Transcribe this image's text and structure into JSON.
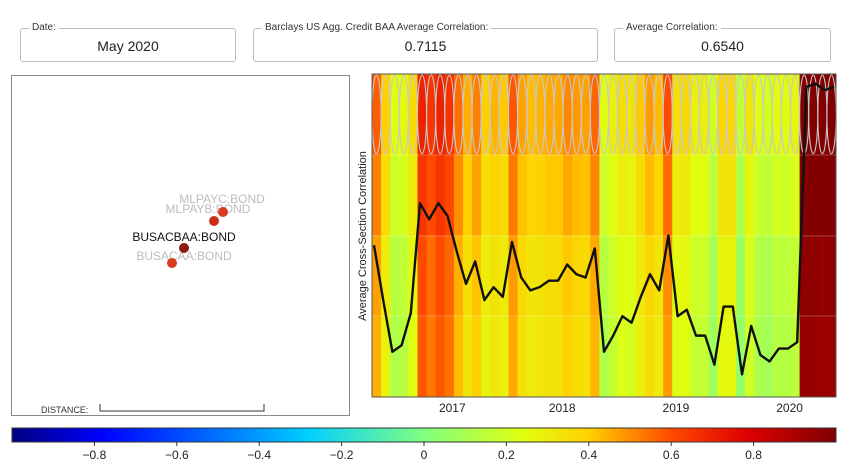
{
  "header": {
    "date_label": "Date:",
    "date_value": "May 2020",
    "barclays_label": "Barclays US Agg. Credit BAA Average Correlation:",
    "barclays_value": "0.7115",
    "avg_label": "Average Correlation:",
    "avg_value": "0.6540"
  },
  "network": {
    "distance_label": "DISTANCE:",
    "nodes": [
      {
        "label": "MLPAYC:BOND",
        "highlight": false,
        "color": "#d93b1e",
        "label_color": "#bdbdbd"
      },
      {
        "label": "MLPAYB:BOND",
        "highlight": false,
        "color": "#c9301b",
        "label_color": "#bdbdbd"
      },
      {
        "label": "BUSACBAA:BOND",
        "highlight": true,
        "color": "#8b1a12",
        "label_color": "#111111"
      },
      {
        "label": "BUSACAA:BOND",
        "highlight": false,
        "color": "#d93b1e",
        "label_color": "#bdbdbd"
      }
    ]
  },
  "chart_data": {
    "type": "line",
    "ylabel": "Average Cross-Section Correlation",
    "xlabel": "",
    "x_ticks": [
      "2017",
      "2018",
      "2019",
      "2020"
    ],
    "heatmap_bands": 4,
    "series": [
      {
        "values": [
          0.47,
          0.3,
          0.14,
          0.16,
          0.26,
          0.6,
          0.55,
          0.6,
          0.56,
          0.45,
          0.35,
          0.42,
          0.3,
          0.34,
          0.31,
          0.48,
          0.37,
          0.33,
          0.34,
          0.36,
          0.36,
          0.41,
          0.38,
          0.37,
          0.46,
          0.14,
          0.19,
          0.25,
          0.23,
          0.31,
          0.38,
          0.33,
          0.5,
          0.25,
          0.27,
          0.19,
          0.19,
          0.1,
          0.28,
          0.28,
          0.07,
          0.22,
          0.13,
          0.11,
          0.15,
          0.15,
          0.17,
          0.96,
          0.97,
          0.95,
          0.96
        ]
      }
    ],
    "colorbar": {
      "ticks": [
        "−0.8",
        "−0.6",
        "−0.4",
        "−0.2",
        "0",
        "0.2",
        "0.4",
        "0.6",
        "0.8"
      ],
      "range": [
        -1,
        1
      ]
    }
  }
}
